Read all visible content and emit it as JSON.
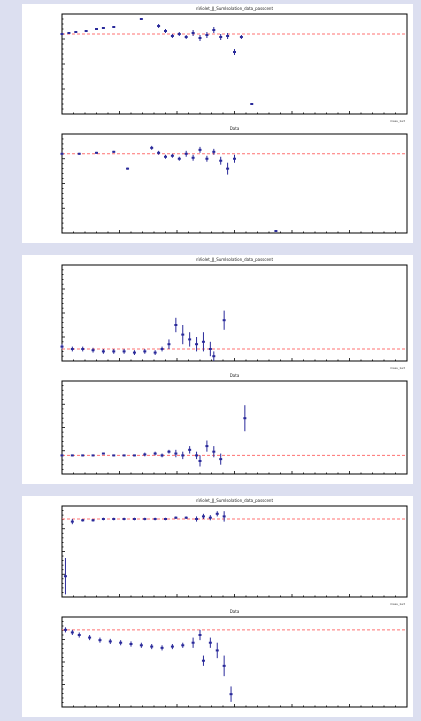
{
  "chart_data": [
    {
      "panel": 1,
      "type": "scatter",
      "title": "nViolet_JJ_SumIsolation_data_passcent",
      "x_note": "mass_1e3",
      "ylim": [
        0.2,
        1.2
      ],
      "ref_y": 1.0,
      "points": [
        {
          "x": 0.0,
          "y": 1.0,
          "e": 0.01
        },
        {
          "x": 0.02,
          "y": 1.01,
          "e": 0.01
        },
        {
          "x": 0.04,
          "y": 1.02,
          "e": 0.01
        },
        {
          "x": 0.07,
          "y": 1.03,
          "e": 0.01
        },
        {
          "x": 0.1,
          "y": 1.05,
          "e": 0.01
        },
        {
          "x": 0.12,
          "y": 1.06,
          "e": 0.01
        },
        {
          "x": 0.15,
          "y": 1.07,
          "e": 0.01
        },
        {
          "x": 0.23,
          "y": 1.15,
          "e": 0.01
        },
        {
          "x": 0.28,
          "y": 1.08,
          "e": 0.02
        },
        {
          "x": 0.3,
          "y": 1.03,
          "e": 0.02
        },
        {
          "x": 0.32,
          "y": 0.98,
          "e": 0.02
        },
        {
          "x": 0.34,
          "y": 1.0,
          "e": 0.02
        },
        {
          "x": 0.36,
          "y": 0.97,
          "e": 0.02
        },
        {
          "x": 0.38,
          "y": 1.01,
          "e": 0.03
        },
        {
          "x": 0.4,
          "y": 0.96,
          "e": 0.03
        },
        {
          "x": 0.42,
          "y": 0.99,
          "e": 0.03
        },
        {
          "x": 0.44,
          "y": 1.04,
          "e": 0.03
        },
        {
          "x": 0.46,
          "y": 0.97,
          "e": 0.03
        },
        {
          "x": 0.48,
          "y": 0.98,
          "e": 0.03
        },
        {
          "x": 0.5,
          "y": 0.82,
          "e": 0.03
        },
        {
          "x": 0.52,
          "y": 0.97,
          "e": 0.02
        },
        {
          "x": 0.55,
          "y": 0.3,
          "e": 0.01
        }
      ]
    },
    {
      "panel": 2,
      "type": "scatter",
      "title": "Data",
      "x_note": "",
      "ylim": [
        0.2,
        1.2
      ],
      "ref_y": 1.0,
      "points": [
        {
          "x": 0.0,
          "y": 1.0,
          "e": 0.01
        },
        {
          "x": 0.05,
          "y": 1.0,
          "e": 0.01
        },
        {
          "x": 0.1,
          "y": 1.01,
          "e": 0.01
        },
        {
          "x": 0.15,
          "y": 1.02,
          "e": 0.01
        },
        {
          "x": 0.19,
          "y": 0.85,
          "e": 0.01
        },
        {
          "x": 0.26,
          "y": 1.06,
          "e": 0.02
        },
        {
          "x": 0.28,
          "y": 1.01,
          "e": 0.02
        },
        {
          "x": 0.3,
          "y": 0.97,
          "e": 0.02
        },
        {
          "x": 0.32,
          "y": 0.98,
          "e": 0.02
        },
        {
          "x": 0.34,
          "y": 0.95,
          "e": 0.02
        },
        {
          "x": 0.36,
          "y": 1.0,
          "e": 0.03
        },
        {
          "x": 0.38,
          "y": 0.96,
          "e": 0.03
        },
        {
          "x": 0.4,
          "y": 1.04,
          "e": 0.03
        },
        {
          "x": 0.42,
          "y": 0.95,
          "e": 0.03
        },
        {
          "x": 0.44,
          "y": 1.02,
          "e": 0.03
        },
        {
          "x": 0.46,
          "y": 0.93,
          "e": 0.04
        },
        {
          "x": 0.48,
          "y": 0.85,
          "e": 0.06
        },
        {
          "x": 0.5,
          "y": 0.95,
          "e": 0.04
        },
        {
          "x": 0.62,
          "y": 0.22,
          "e": 0.01
        }
      ]
    },
    {
      "panel": 3,
      "type": "scatter",
      "title": "nViolet_JJ_SumIsolation_data_passcent",
      "x_note": "mass_1e3",
      "ylim": [
        0.95,
        1.35
      ],
      "ref_y": 1.0,
      "points": [
        {
          "x": 0.0,
          "y": 1.01,
          "e": 0.01
        },
        {
          "x": 0.03,
          "y": 1.0,
          "e": 0.01
        },
        {
          "x": 0.06,
          "y": 1.0,
          "e": 0.01
        },
        {
          "x": 0.09,
          "y": 0.995,
          "e": 0.01
        },
        {
          "x": 0.12,
          "y": 0.99,
          "e": 0.01
        },
        {
          "x": 0.15,
          "y": 0.99,
          "e": 0.01
        },
        {
          "x": 0.18,
          "y": 0.99,
          "e": 0.01
        },
        {
          "x": 0.21,
          "y": 0.985,
          "e": 0.01
        },
        {
          "x": 0.24,
          "y": 0.99,
          "e": 0.01
        },
        {
          "x": 0.27,
          "y": 0.985,
          "e": 0.01
        },
        {
          "x": 0.29,
          "y": 1.0,
          "e": 0.01
        },
        {
          "x": 0.31,
          "y": 1.02,
          "e": 0.02
        },
        {
          "x": 0.33,
          "y": 1.1,
          "e": 0.03
        },
        {
          "x": 0.35,
          "y": 1.06,
          "e": 0.04
        },
        {
          "x": 0.37,
          "y": 1.04,
          "e": 0.03
        },
        {
          "x": 0.39,
          "y": 1.02,
          "e": 0.03
        },
        {
          "x": 0.41,
          "y": 1.03,
          "e": 0.04
        },
        {
          "x": 0.43,
          "y": 1.0,
          "e": 0.03
        },
        {
          "x": 0.44,
          "y": 0.97,
          "e": 0.02
        },
        {
          "x": 0.47,
          "y": 1.12,
          "e": 0.04
        }
      ]
    },
    {
      "panel": 4,
      "type": "scatter",
      "title": "Data",
      "x_note": "",
      "ylim": [
        0.9,
        1.4
      ],
      "ref_y": 1.0,
      "points": [
        {
          "x": 0.0,
          "y": 1.0,
          "e": 0.005
        },
        {
          "x": 0.03,
          "y": 1.0,
          "e": 0.005
        },
        {
          "x": 0.06,
          "y": 1.0,
          "e": 0.005
        },
        {
          "x": 0.09,
          "y": 1.0,
          "e": 0.005
        },
        {
          "x": 0.12,
          "y": 1.01,
          "e": 0.005
        },
        {
          "x": 0.15,
          "y": 1.0,
          "e": 0.005
        },
        {
          "x": 0.18,
          "y": 1.0,
          "e": 0.005
        },
        {
          "x": 0.21,
          "y": 1.0,
          "e": 0.005
        },
        {
          "x": 0.24,
          "y": 1.005,
          "e": 0.01
        },
        {
          "x": 0.27,
          "y": 1.01,
          "e": 0.01
        },
        {
          "x": 0.29,
          "y": 1.0,
          "e": 0.01
        },
        {
          "x": 0.31,
          "y": 1.02,
          "e": 0.01
        },
        {
          "x": 0.33,
          "y": 1.01,
          "e": 0.02
        },
        {
          "x": 0.35,
          "y": 1.0,
          "e": 0.02
        },
        {
          "x": 0.37,
          "y": 1.03,
          "e": 0.02
        },
        {
          "x": 0.39,
          "y": 1.0,
          "e": 0.02
        },
        {
          "x": 0.4,
          "y": 0.97,
          "e": 0.03
        },
        {
          "x": 0.42,
          "y": 1.05,
          "e": 0.03
        },
        {
          "x": 0.44,
          "y": 1.02,
          "e": 0.03
        },
        {
          "x": 0.46,
          "y": 0.98,
          "e": 0.03
        },
        {
          "x": 0.53,
          "y": 1.2,
          "e": 0.07
        }
      ]
    },
    {
      "panel": 5,
      "type": "scatter",
      "title": "nViolet_JJ_SumIsolation_data_passcent",
      "x_note": "mass_1e3",
      "ylim": [
        0.7,
        1.05
      ],
      "ref_y": 1.0,
      "points": [
        {
          "x": 0.01,
          "y": 0.78,
          "e": 0.07
        },
        {
          "x": 0.03,
          "y": 0.99,
          "e": 0.01
        },
        {
          "x": 0.06,
          "y": 0.995,
          "e": 0.005
        },
        {
          "x": 0.09,
          "y": 0.995,
          "e": 0.005
        },
        {
          "x": 0.12,
          "y": 1.0,
          "e": 0.005
        },
        {
          "x": 0.15,
          "y": 1.0,
          "e": 0.005
        },
        {
          "x": 0.18,
          "y": 1.0,
          "e": 0.005
        },
        {
          "x": 0.21,
          "y": 1.0,
          "e": 0.005
        },
        {
          "x": 0.24,
          "y": 1.0,
          "e": 0.005
        },
        {
          "x": 0.27,
          "y": 1.0,
          "e": 0.005
        },
        {
          "x": 0.3,
          "y": 1.0,
          "e": 0.005
        },
        {
          "x": 0.33,
          "y": 1.005,
          "e": 0.005
        },
        {
          "x": 0.36,
          "y": 1.005,
          "e": 0.005
        },
        {
          "x": 0.39,
          "y": 1.0,
          "e": 0.01
        },
        {
          "x": 0.41,
          "y": 1.01,
          "e": 0.01
        },
        {
          "x": 0.43,
          "y": 1.005,
          "e": 0.01
        },
        {
          "x": 0.45,
          "y": 1.02,
          "e": 0.01
        },
        {
          "x": 0.47,
          "y": 1.01,
          "e": 0.02
        }
      ]
    },
    {
      "panel": 6,
      "type": "scatter",
      "title": "Data",
      "x_note": "",
      "ylim": [
        0.7,
        1.05
      ],
      "ref_y": 1.0,
      "points": [
        {
          "x": 0.01,
          "y": 1.0,
          "e": 0.01
        },
        {
          "x": 0.03,
          "y": 0.99,
          "e": 0.01
        },
        {
          "x": 0.05,
          "y": 0.98,
          "e": 0.01
        },
        {
          "x": 0.08,
          "y": 0.97,
          "e": 0.01
        },
        {
          "x": 0.11,
          "y": 0.96,
          "e": 0.01
        },
        {
          "x": 0.14,
          "y": 0.955,
          "e": 0.01
        },
        {
          "x": 0.17,
          "y": 0.95,
          "e": 0.01
        },
        {
          "x": 0.2,
          "y": 0.945,
          "e": 0.01
        },
        {
          "x": 0.23,
          "y": 0.94,
          "e": 0.01
        },
        {
          "x": 0.26,
          "y": 0.935,
          "e": 0.01
        },
        {
          "x": 0.29,
          "y": 0.93,
          "e": 0.01
        },
        {
          "x": 0.32,
          "y": 0.935,
          "e": 0.01
        },
        {
          "x": 0.35,
          "y": 0.94,
          "e": 0.01
        },
        {
          "x": 0.38,
          "y": 0.95,
          "e": 0.02
        },
        {
          "x": 0.4,
          "y": 0.98,
          "e": 0.02
        },
        {
          "x": 0.41,
          "y": 0.88,
          "e": 0.02
        },
        {
          "x": 0.43,
          "y": 0.95,
          "e": 0.02
        },
        {
          "x": 0.45,
          "y": 0.92,
          "e": 0.03
        },
        {
          "x": 0.47,
          "y": 0.86,
          "e": 0.04
        },
        {
          "x": 0.49,
          "y": 0.75,
          "e": 0.03
        }
      ]
    }
  ],
  "style": {
    "marker_color": "#2a2a9a",
    "reference_line_color": "#ff7070",
    "panel_bg": "#ffffff",
    "page_bg": "#dcdff0"
  }
}
